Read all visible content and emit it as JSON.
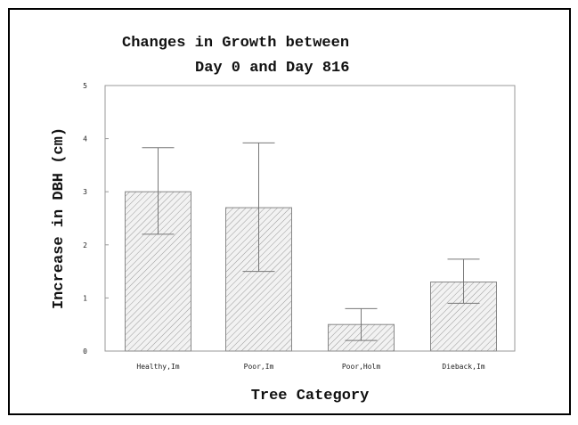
{
  "chart_data": {
    "type": "bar",
    "title": [
      "Changes in Growth between",
      "Day 0 and Day 816"
    ],
    "xlabel": "Tree Category",
    "ylabel": "Increase in DBH (cm)",
    "categories": [
      "Healthy,Im",
      "Poor,Im",
      "Poor,Holm",
      "Dieback,Im"
    ],
    "values": [
      3.0,
      2.7,
      0.5,
      1.3
    ],
    "error_low": [
      2.2,
      1.5,
      0.2,
      0.9
    ],
    "error_high": [
      3.83,
      3.92,
      0.8,
      1.73
    ],
    "ylim": [
      0,
      5
    ],
    "yticks": [
      0,
      1,
      2,
      3,
      4,
      5
    ],
    "grid": false,
    "bar_pattern": "diagonal-hatch",
    "bar_color": "#f2f2f2",
    "hatch_color": "#9a9a9a"
  }
}
